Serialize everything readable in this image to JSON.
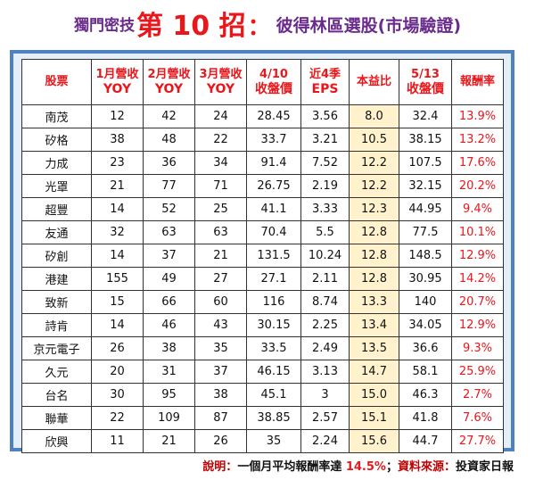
{
  "title": {
    "prefix": "獨門密技",
    "main": "第 10 招",
    "colon": "：",
    "suffix": "彼得林區選股(市場驗證)"
  },
  "table": {
    "headers": [
      {
        "line1": "股票",
        "line2": ""
      },
      {
        "line1": "1月營收",
        "line2": "YOY"
      },
      {
        "line1": "2月營收",
        "line2": "YOY"
      },
      {
        "line1": "3月營收",
        "line2": "YOY"
      },
      {
        "line1": "4/10",
        "line2": "收盤價"
      },
      {
        "line1": "近4季",
        "line2": "EPS"
      },
      {
        "line1": "本益比",
        "line2": ""
      },
      {
        "line1": "5/13",
        "line2": "收盤價"
      },
      {
        "line1": "報酬率",
        "line2": ""
      }
    ],
    "rows": [
      [
        "南茂",
        "12",
        "42",
        "24",
        "28.45",
        "3.56",
        "8.0",
        "32.4",
        "13.9%"
      ],
      [
        "矽格",
        "38",
        "48",
        "22",
        "33.7",
        "3.21",
        "10.5",
        "38.15",
        "13.2%"
      ],
      [
        "力成",
        "23",
        "36",
        "34",
        "91.4",
        "7.52",
        "12.2",
        "107.5",
        "17.6%"
      ],
      [
        "光罩",
        "21",
        "77",
        "71",
        "26.75",
        "2.19",
        "12.2",
        "32.15",
        "20.2%"
      ],
      [
        "超豐",
        "14",
        "52",
        "25",
        "41.1",
        "3.33",
        "12.3",
        "44.95",
        "9.4%"
      ],
      [
        "友通",
        "32",
        "63",
        "63",
        "70.4",
        "5.5",
        "12.8",
        "77.5",
        "10.1%"
      ],
      [
        "矽創",
        "14",
        "37",
        "21",
        "131.5",
        "10.24",
        "12.8",
        "148.5",
        "12.9%"
      ],
      [
        "港建",
        "155",
        "49",
        "27",
        "27.1",
        "2.11",
        "12.8",
        "30.95",
        "14.2%"
      ],
      [
        "致新",
        "15",
        "66",
        "60",
        "116",
        "8.74",
        "13.3",
        "140",
        "20.7%"
      ],
      [
        "詩肯",
        "14",
        "46",
        "43",
        "30.15",
        "2.25",
        "13.4",
        "34.05",
        "12.9%"
      ],
      [
        "京元電子",
        "26",
        "38",
        "35",
        "33.5",
        "2.49",
        "13.5",
        "36.6",
        "9.3%"
      ],
      [
        "久元",
        "20",
        "31",
        "37",
        "46.15",
        "3.13",
        "14.7",
        "58.1",
        "25.9%"
      ],
      [
        "台名",
        "30",
        "95",
        "38",
        "45.1",
        "3",
        "15.0",
        "46.3",
        "2.7%"
      ],
      [
        "聯華",
        "22",
        "109",
        "87",
        "38.85",
        "2.57",
        "15.1",
        "41.8",
        "7.6%"
      ],
      [
        "欣興",
        "11",
        "21",
        "26",
        "35",
        "2.24",
        "15.6",
        "44.7",
        "27.7%"
      ]
    ]
  },
  "footer": {
    "label": "說明：",
    "text1": "一個月平均報酬率達 ",
    "highlight": "14.5%",
    "sep": "；",
    "source_label": "資料來源：",
    "source": "投資家日報"
  },
  "colors": {
    "title": "#6a2c8c",
    "accent": "#e8171c",
    "frame": "#4e81bd",
    "frame_bg": "#e3eef8",
    "pe_highlight": "#fff2cc"
  }
}
